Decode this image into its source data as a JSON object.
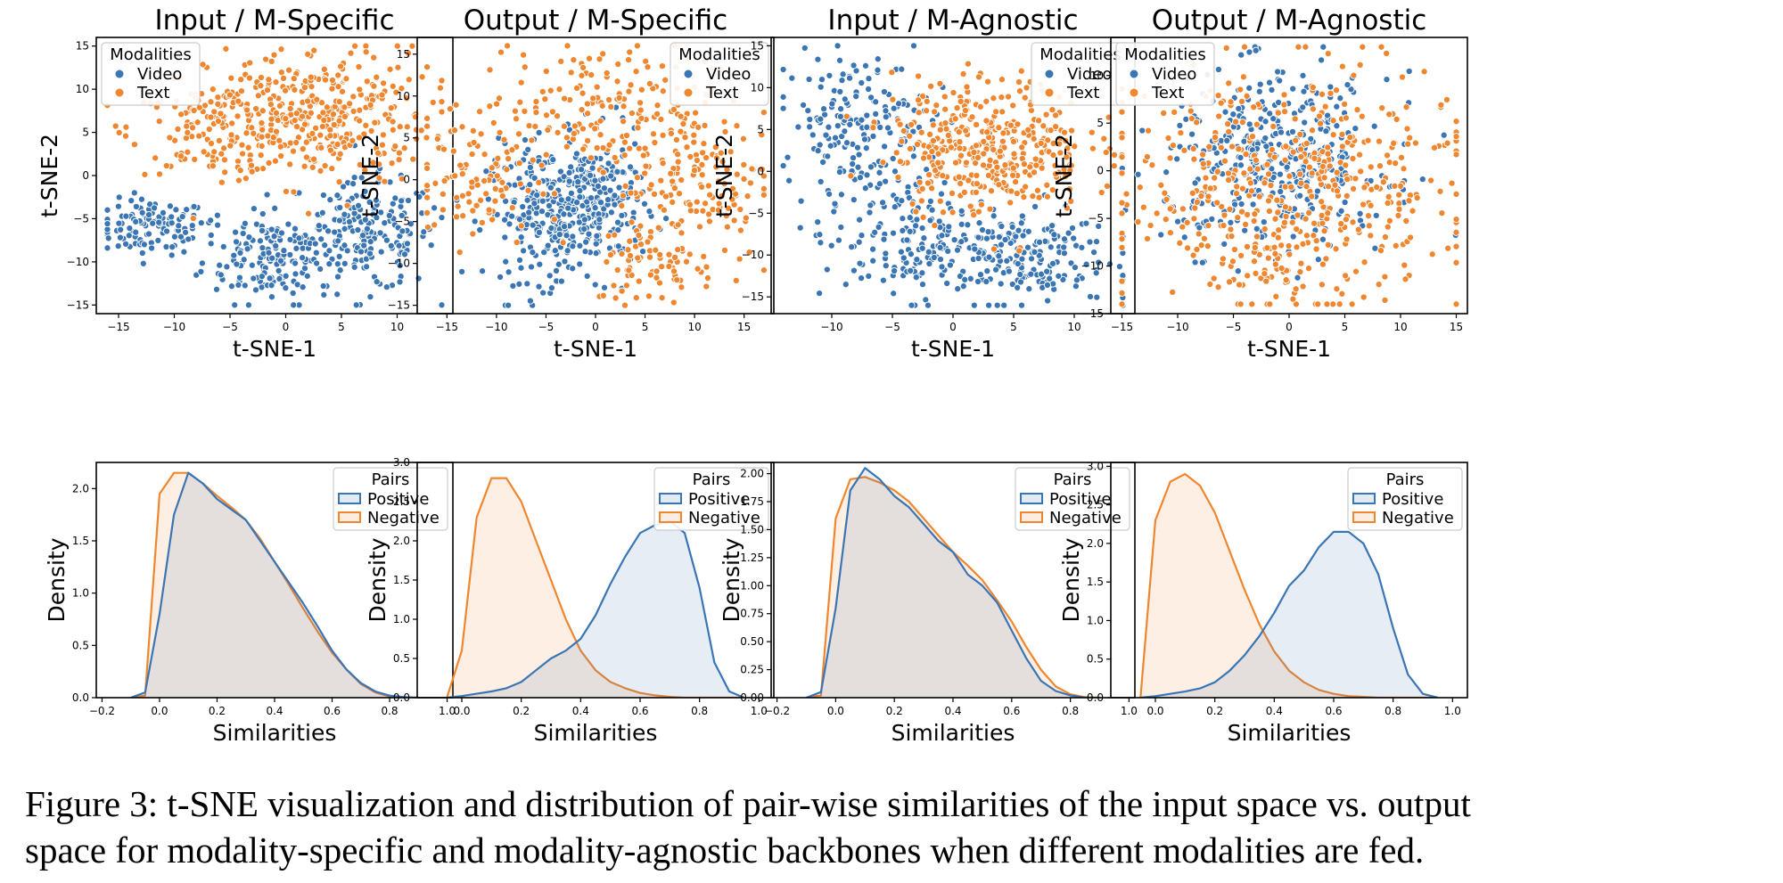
{
  "figure": {
    "caption_line1": "Figure 3: t-SNE visualization and distribution of pair-wise similarities of the input space vs. output",
    "caption_line2": "space for modality-specific and modality-agnostic backbones when different modalities are fed."
  },
  "colors": {
    "video": "#3a75b4",
    "text": "#ef8630",
    "positive": "#3a75b4",
    "negative": "#ef8630",
    "overlap_fill": "#e4ddd7"
  },
  "chart_data": [
    {
      "type": "scatter",
      "title": "Input / M-Specific",
      "xlabel": "t-SNE-1",
      "ylabel": "t-SNE-2",
      "xlim": [
        -17,
        15
      ],
      "ylim": [
        -16,
        16
      ],
      "xticks": [
        -15,
        -10,
        -5,
        0,
        5,
        10
      ],
      "yticks": [
        -15,
        -10,
        -5,
        0,
        5,
        10,
        15
      ],
      "legend_title": "Modalities",
      "legend_entries": [
        "Video",
        "Text"
      ],
      "legend_position": "top-left",
      "series": [
        {
          "name": "Video",
          "clusters": [
            {
              "cx": -12,
              "cy": -6,
              "sx": 2.5,
              "sy": 1.6,
              "n": 110
            },
            {
              "cx": -1.5,
              "cy": -9,
              "sx": 3,
              "sy": 3,
              "n": 170
            },
            {
              "cx": 7.5,
              "cy": -7,
              "sx": 3,
              "sy": 3.2,
              "n": 180
            }
          ]
        },
        {
          "name": "Text",
          "clusters": [
            {
              "cx": -6,
              "cy": 5.5,
              "sx": 4,
              "sy": 2.6,
              "n": 150
            },
            {
              "cx": 3,
              "cy": 7,
              "sx": 5,
              "sy": 4,
              "n": 330
            }
          ]
        }
      ]
    },
    {
      "type": "scatter",
      "title": "Output / M-Specific",
      "xlabel": "t-SNE-1",
      "ylabel": "t-SNE-2",
      "xlim": [
        -18,
        18
      ],
      "ylim": [
        -16,
        17
      ],
      "xticks": [
        -15,
        -10,
        -5,
        0,
        5,
        10,
        15
      ],
      "yticks": [
        -15,
        -10,
        -5,
        0,
        5,
        10,
        15
      ],
      "legend_title": "Modalities",
      "legend_entries": [
        "Video",
        "Text"
      ],
      "legend_position": "top-right",
      "series": [
        {
          "name": "Video",
          "clusters": [
            {
              "cx": -5,
              "cy": -4,
              "sx": 3,
              "sy": 4,
              "n": 230
            },
            {
              "cx": 0,
              "cy": -3,
              "sx": 2.4,
              "sy": 4,
              "n": 200
            }
          ]
        },
        {
          "name": "Text",
          "clusters": [
            {
              "cx": 0,
              "cy": 9,
              "sx": 6,
              "sy": 3.5,
              "n": 170
            },
            {
              "cx": -12,
              "cy": 0,
              "sx": 3,
              "sy": 4,
              "n": 90
            },
            {
              "cx": 10,
              "cy": 0,
              "sx": 4,
              "sy": 5,
              "n": 160
            },
            {
              "cx": 6,
              "cy": -10,
              "sx": 3,
              "sy": 2.5,
              "n": 70
            }
          ]
        }
      ]
    },
    {
      "type": "scatter",
      "title": "Input / M-Agnostic",
      "xlabel": "t-SNE-1",
      "ylabel": "t-SNE-2",
      "xlim": [
        -15,
        15
      ],
      "ylim": [
        -17,
        16
      ],
      "xticks": [
        -10,
        -5,
        0,
        5,
        10
      ],
      "yticks": [
        -15,
        -10,
        -5,
        0,
        5,
        10,
        15
      ],
      "legend_title": "Modalities",
      "legend_entries": [
        "Video",
        "Text"
      ],
      "legend_position": "top-right",
      "series": [
        {
          "name": "Video",
          "clusters": [
            {
              "cx": -8,
              "cy": 6,
              "sx": 3,
              "sy": 4,
              "n": 170
            },
            {
              "cx": -4,
              "cy": -8,
              "sx": 3.5,
              "sy": 4,
              "n": 150
            },
            {
              "cx": 5,
              "cy": -10,
              "sx": 4,
              "sy": 3,
              "n": 200
            }
          ]
        },
        {
          "name": "Text",
          "clusters": [
            {
              "cx": 3,
              "cy": 3,
              "sx": 4,
              "sy": 4,
              "n": 380
            }
          ]
        }
      ]
    },
    {
      "type": "scatter",
      "title": "Output / M-Agnostic",
      "xlabel": "t-SNE-1",
      "ylabel": "t-SNE-2",
      "xlim": [
        -16,
        16
      ],
      "ylim": [
        -15,
        14
      ],
      "xticks": [
        -15,
        -10,
        -5,
        0,
        5,
        10,
        15
      ],
      "yticks": [
        -15,
        -10,
        -5,
        0,
        5,
        10
      ],
      "legend_title": "Modalities",
      "legend_entries": [
        "Video",
        "Text"
      ],
      "legend_position": "top-left",
      "series": [
        {
          "name": "Video",
          "clusters": [
            {
              "cx": -1,
              "cy": 1,
              "sx": 5,
              "sy": 4.5,
              "n": 380
            }
          ]
        },
        {
          "name": "Text",
          "clusters": [
            {
              "cx": 0,
              "cy": -1,
              "sx": 8,
              "sy": 6,
              "n": 420
            },
            {
              "cx": 0,
              "cy": -10,
              "sx": 5,
              "sy": 2.5,
              "n": 80
            }
          ]
        }
      ]
    },
    {
      "type": "area",
      "xlabel": "Similarities",
      "ylabel": "Density",
      "xlim": [
        -0.22,
        1.02
      ],
      "ylim": [
        0,
        2.25
      ],
      "xticks": [
        -0.2,
        0.0,
        0.2,
        0.4,
        0.6,
        0.8,
        1.0
      ],
      "xtick_labels": [
        "−0.2",
        "0.0",
        "0.2",
        "0.4",
        "0.6",
        "0.8",
        "1.0"
      ],
      "yticks": [
        0,
        0.5,
        1.0,
        1.5,
        2.0
      ],
      "ytick_labels": [
        "0.0",
        "0.5",
        "1.0",
        "1.5",
        "2.0"
      ],
      "legend_title": "Pairs",
      "legend_entries": [
        "Positive",
        "Negative"
      ],
      "legend_position": "top-right",
      "x": [
        -0.1,
        -0.05,
        0.0,
        0.05,
        0.1,
        0.15,
        0.2,
        0.25,
        0.3,
        0.35,
        0.4,
        0.45,
        0.5,
        0.55,
        0.6,
        0.65,
        0.7,
        0.75,
        0.8,
        0.85,
        0.9
      ],
      "series": [
        {
          "name": "Positive",
          "values": [
            0,
            0.05,
            0.8,
            1.75,
            2.15,
            2.05,
            1.9,
            1.8,
            1.7,
            1.5,
            1.3,
            1.1,
            0.9,
            0.68,
            0.45,
            0.27,
            0.14,
            0.06,
            0.02,
            0.005,
            0
          ]
        },
        {
          "name": "Negative",
          "values": [
            0,
            0.02,
            1.95,
            2.15,
            2.15,
            2.05,
            1.93,
            1.82,
            1.7,
            1.52,
            1.3,
            1.08,
            0.85,
            0.63,
            0.43,
            0.27,
            0.13,
            0.05,
            0.01,
            0,
            0
          ]
        }
      ]
    },
    {
      "type": "area",
      "xlabel": "Similarities",
      "ylabel": "Density",
      "xlim": [
        -0.15,
        1.05
      ],
      "ylim": [
        0,
        3.0
      ],
      "xticks": [
        0.0,
        0.2,
        0.4,
        0.6,
        0.8,
        1.0
      ],
      "xtick_labels": [
        "0.0",
        "0.2",
        "0.4",
        "0.6",
        "0.8",
        "1.0"
      ],
      "yticks": [
        0,
        0.5,
        1.0,
        1.5,
        2.0,
        2.5,
        3.0
      ],
      "ytick_labels": [
        "0.0",
        "0.5",
        "1.0",
        "1.5",
        "2.0",
        "2.5",
        "3.0"
      ],
      "legend_title": "Pairs",
      "legend_entries": [
        "Positive",
        "Negative"
      ],
      "legend_position": "top-right",
      "x": [
        -0.05,
        0.0,
        0.05,
        0.1,
        0.15,
        0.2,
        0.25,
        0.3,
        0.35,
        0.4,
        0.45,
        0.5,
        0.55,
        0.6,
        0.65,
        0.7,
        0.75,
        0.8,
        0.85,
        0.9,
        0.95
      ],
      "series": [
        {
          "name": "Positive",
          "values": [
            0,
            0.02,
            0.05,
            0.08,
            0.12,
            0.2,
            0.35,
            0.5,
            0.6,
            0.75,
            1.05,
            1.45,
            1.8,
            2.1,
            2.2,
            2.25,
            2.1,
            1.4,
            0.45,
            0.08,
            0
          ]
        },
        {
          "name": "Negative",
          "values": [
            0,
            0.6,
            2.3,
            2.8,
            2.8,
            2.5,
            2.0,
            1.5,
            1.0,
            0.6,
            0.35,
            0.2,
            0.12,
            0.06,
            0.03,
            0.01,
            0,
            0,
            0,
            0,
            0
          ]
        }
      ]
    },
    {
      "type": "area",
      "xlabel": "Similarities",
      "ylabel": "Density",
      "xlim": [
        -0.22,
        1.02
      ],
      "ylim": [
        0,
        2.1
      ],
      "xticks": [
        -0.2,
        0.0,
        0.2,
        0.4,
        0.6,
        0.8,
        1.0
      ],
      "xtick_labels": [
        "−0.2",
        "0.0",
        "0.2",
        "0.4",
        "0.6",
        "0.8",
        "1.0"
      ],
      "yticks": [
        0,
        0.25,
        0.5,
        0.75,
        1.0,
        1.25,
        1.5,
        1.75,
        2.0
      ],
      "ytick_labels": [
        "0.00",
        "0.25",
        "0.50",
        "0.75",
        "1.00",
        "1.25",
        "1.50",
        "1.75",
        "2.00"
      ],
      "legend_title": "Pairs",
      "legend_entries": [
        "Positive",
        "Negative"
      ],
      "legend_position": "top-right",
      "x": [
        -0.1,
        -0.05,
        0.0,
        0.05,
        0.1,
        0.15,
        0.2,
        0.25,
        0.3,
        0.35,
        0.4,
        0.45,
        0.5,
        0.55,
        0.6,
        0.65,
        0.7,
        0.75,
        0.8,
        0.85,
        0.9
      ],
      "series": [
        {
          "name": "Positive",
          "values": [
            0,
            0.05,
            0.8,
            1.85,
            2.05,
            1.95,
            1.8,
            1.7,
            1.55,
            1.4,
            1.3,
            1.1,
            1.0,
            0.85,
            0.6,
            0.35,
            0.15,
            0.06,
            0.02,
            0,
            0
          ]
        },
        {
          "name": "Negative",
          "values": [
            0,
            0.02,
            1.6,
            1.95,
            1.97,
            1.92,
            1.85,
            1.75,
            1.6,
            1.45,
            1.3,
            1.18,
            1.05,
            0.87,
            0.68,
            0.45,
            0.25,
            0.1,
            0.03,
            0.005,
            0
          ]
        }
      ]
    },
    {
      "type": "area",
      "xlabel": "Similarities",
      "ylabel": "Density",
      "xlim": [
        -0.15,
        1.05
      ],
      "ylim": [
        0,
        3.05
      ],
      "xticks": [
        0.0,
        0.2,
        0.4,
        0.6,
        0.8,
        1.0
      ],
      "xtick_labels": [
        "0.0",
        "0.2",
        "0.4",
        "0.6",
        "0.8",
        "1.0"
      ],
      "yticks": [
        0,
        0.5,
        1.0,
        1.5,
        2.0,
        2.5,
        3.0
      ],
      "ytick_labels": [
        "0.0",
        "0.5",
        "1.0",
        "1.5",
        "2.0",
        "2.5",
        "3.0"
      ],
      "legend_title": "Pairs",
      "legend_entries": [
        "Positive",
        "Negative"
      ],
      "legend_position": "top-right",
      "x": [
        -0.05,
        0.0,
        0.05,
        0.1,
        0.15,
        0.2,
        0.25,
        0.3,
        0.35,
        0.4,
        0.45,
        0.5,
        0.55,
        0.6,
        0.65,
        0.7,
        0.75,
        0.8,
        0.85,
        0.9,
        0.95
      ],
      "series": [
        {
          "name": "Positive",
          "values": [
            0,
            0.02,
            0.05,
            0.08,
            0.12,
            0.2,
            0.35,
            0.55,
            0.8,
            1.1,
            1.45,
            1.65,
            1.95,
            2.15,
            2.15,
            2.0,
            1.6,
            0.9,
            0.3,
            0.05,
            0
          ]
        },
        {
          "name": "Negative",
          "values": [
            0,
            2.3,
            2.8,
            2.9,
            2.75,
            2.4,
            1.9,
            1.4,
            0.95,
            0.6,
            0.35,
            0.2,
            0.1,
            0.05,
            0.02,
            0.01,
            0,
            0,
            0,
            0,
            0
          ]
        }
      ]
    }
  ]
}
